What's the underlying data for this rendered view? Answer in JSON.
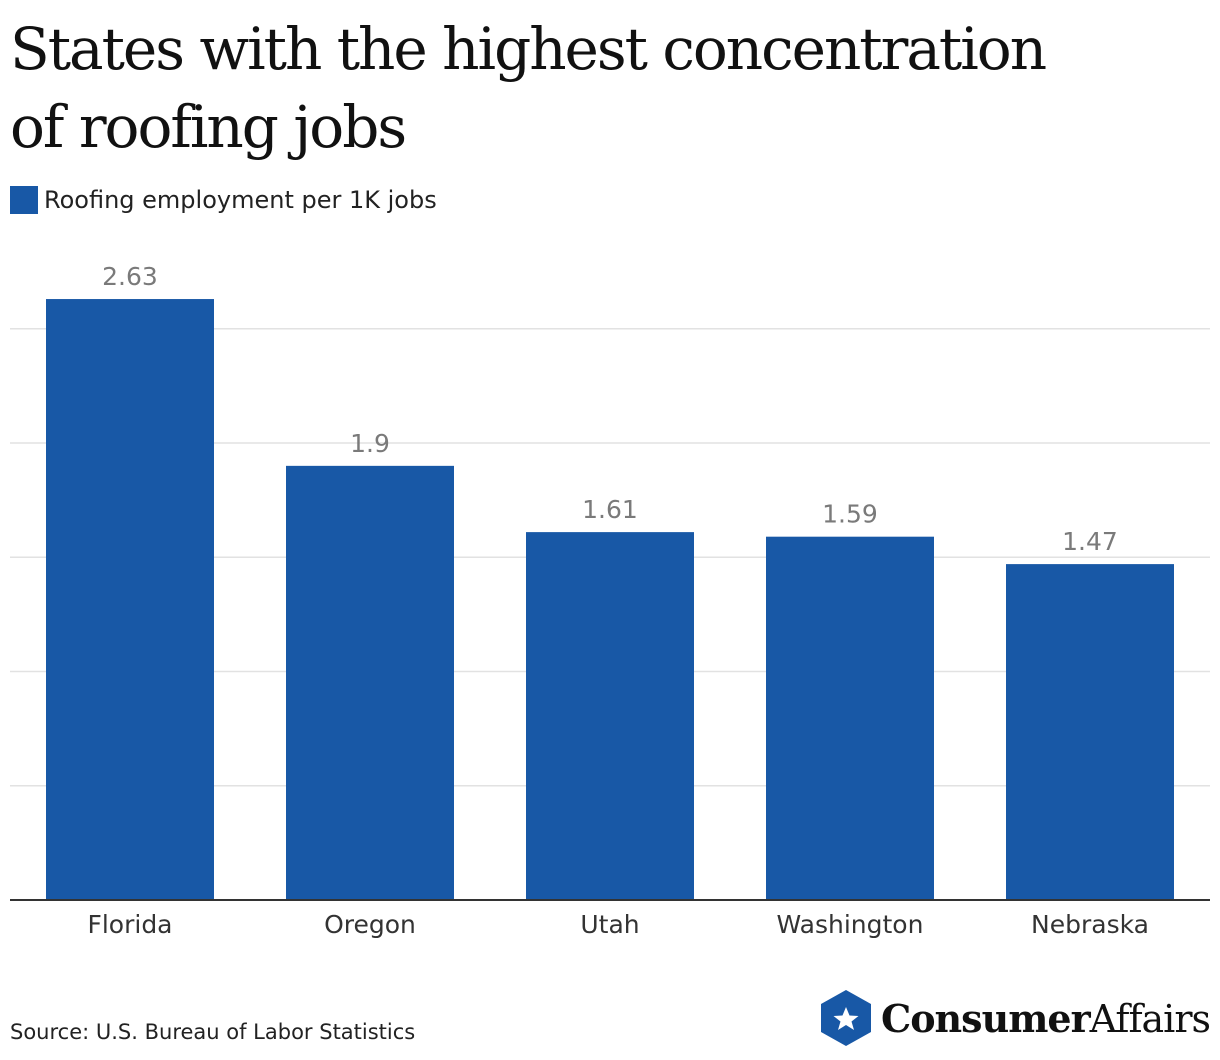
{
  "header": {
    "title_line1": "States with the highest concentration",
    "title_line2": "of roofing jobs"
  },
  "legend": {
    "label": "Roofing employment per 1K jobs"
  },
  "colors": {
    "bar": "#1858a6",
    "grid": "#e2e2e2",
    "axis": "#333333"
  },
  "chart_data": {
    "type": "bar",
    "title": "States with the highest concentration of roofing jobs",
    "categories": [
      "Florida",
      "Oregon",
      "Utah",
      "Washington",
      "Nebraska"
    ],
    "series": [
      {
        "name": "Roofing employment per 1K jobs",
        "values": [
          2.63,
          1.9,
          1.61,
          1.59,
          1.47
        ]
      }
    ],
    "value_labels": [
      "2.63",
      "1.9",
      "1.61",
      "1.59",
      "1.47"
    ],
    "xlabel": "",
    "ylabel": "",
    "ylim": [
      0,
      2.5
    ],
    "yticks": [
      0.5,
      1.0,
      1.5,
      2.0,
      2.5
    ],
    "grid": true,
    "legend_position": "top-left"
  },
  "footer": {
    "source": "Source: U.S. Bureau of Labor Statistics",
    "brand_bold": "Consumer",
    "brand_regular": "Affairs",
    "brand_icon": "star-shield-icon"
  }
}
